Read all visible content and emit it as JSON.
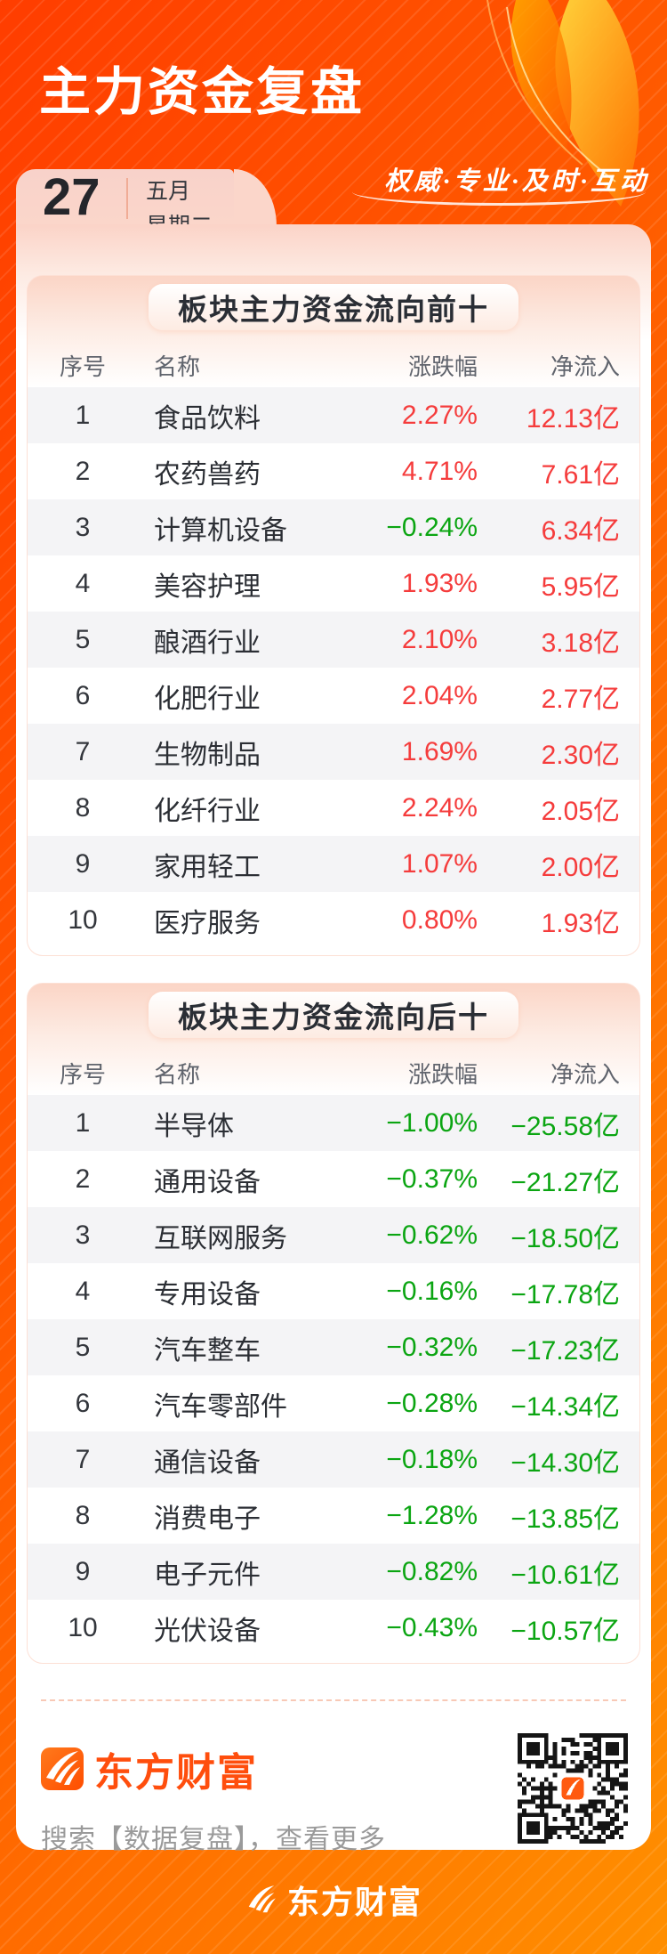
{
  "header": {
    "title": "主力资金复盘",
    "slogan": "权威·专业·及时·互动",
    "date": {
      "day": "27",
      "month": "五月",
      "weekday": "星期二"
    }
  },
  "tables": [
    {
      "title": "板块主力资金流向前十",
      "columns": [
        "序号",
        "名称",
        "涨跌幅",
        "净流入"
      ],
      "rows": [
        {
          "rank": "1",
          "name": "食品饮料",
          "change": "2.27%",
          "net": "12.13亿"
        },
        {
          "rank": "2",
          "name": "农药兽药",
          "change": "4.71%",
          "net": "7.61亿"
        },
        {
          "rank": "3",
          "name": "计算机设备",
          "change": "−0.24%",
          "net": "6.34亿"
        },
        {
          "rank": "4",
          "name": "美容护理",
          "change": "1.93%",
          "net": "5.95亿"
        },
        {
          "rank": "5",
          "name": "酿酒行业",
          "change": "2.10%",
          "net": "3.18亿"
        },
        {
          "rank": "6",
          "name": "化肥行业",
          "change": "2.04%",
          "net": "2.77亿"
        },
        {
          "rank": "7",
          "name": "生物制品",
          "change": "1.69%",
          "net": "2.30亿"
        },
        {
          "rank": "8",
          "name": "化纤行业",
          "change": "2.24%",
          "net": "2.05亿"
        },
        {
          "rank": "9",
          "name": "家用轻工",
          "change": "1.07%",
          "net": "2.00亿"
        },
        {
          "rank": "10",
          "name": "医疗服务",
          "change": "0.80%",
          "net": "1.93亿"
        }
      ]
    },
    {
      "title": "板块主力资金流向后十",
      "columns": [
        "序号",
        "名称",
        "涨跌幅",
        "净流入"
      ],
      "rows": [
        {
          "rank": "1",
          "name": "半导体",
          "change": "−1.00%",
          "net": "−25.58亿"
        },
        {
          "rank": "2",
          "name": "通用设备",
          "change": "−0.37%",
          "net": "−21.27亿"
        },
        {
          "rank": "3",
          "name": "互联网服务",
          "change": "−0.62%",
          "net": "−18.50亿"
        },
        {
          "rank": "4",
          "name": "专用设备",
          "change": "−0.16%",
          "net": "−17.78亿"
        },
        {
          "rank": "5",
          "name": "汽车整车",
          "change": "−0.32%",
          "net": "−17.23亿"
        },
        {
          "rank": "6",
          "name": "汽车零部件",
          "change": "−0.28%",
          "net": "−14.34亿"
        },
        {
          "rank": "7",
          "name": "通信设备",
          "change": "−0.18%",
          "net": "−14.30亿"
        },
        {
          "rank": "8",
          "name": "消费电子",
          "change": "−1.28%",
          "net": "−13.85亿"
        },
        {
          "rank": "9",
          "name": "电子元件",
          "change": "−0.82%",
          "net": "−10.61亿"
        },
        {
          "rank": "10",
          "name": "光伏设备",
          "change": "−0.43%",
          "net": "−10.57亿"
        }
      ]
    }
  ],
  "footer": {
    "brand": "东方财富",
    "search_hint": "搜索【数据复盘】，查看更多",
    "bottom_brand": "东方财富"
  },
  "icons": {
    "brand_logo": "eastmoney-swoosh",
    "qr": "qr-code"
  },
  "colors": {
    "accent_orange": "#ff5a10",
    "up_red": "#f53c3c",
    "down_green": "#0ba512",
    "panel_pink": "#fbd3c7"
  }
}
